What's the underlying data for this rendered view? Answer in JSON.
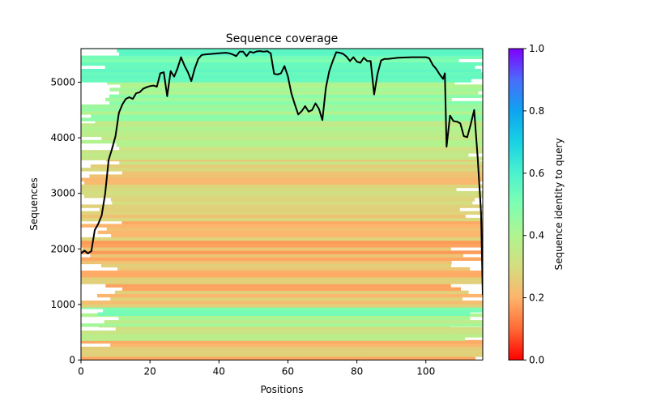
{
  "chart_data": {
    "type": "heatmap",
    "title": "Sequence coverage",
    "xlabel": "Positions",
    "ylabel": "Sequences",
    "xlim": [
      0,
      116.5
    ],
    "ylim": [
      0,
      5605
    ],
    "xticks": [
      0,
      20,
      40,
      60,
      80,
      100
    ],
    "yticks": [
      0,
      1000,
      2000,
      3000,
      4000,
      5000
    ],
    "grid": false,
    "colorbar": {
      "label": "Sequence identity to query",
      "range": [
        0.0,
        1.0
      ],
      "ticks": [
        "0.0",
        "0.2",
        "0.4",
        "0.6",
        "0.8",
        "1.0"
      ],
      "colormap": "rainbow_r",
      "colors": [
        "#ff0000",
        "#ff6a35",
        "#fdb46c",
        "#d4dd80",
        "#b0f490",
        "#7ffeb2",
        "#4cf2ce",
        "#19d2e3",
        "#0ea4f0",
        "#4a6cfb",
        "#8000ff"
      ]
    },
    "identity_bands": [
      {
        "from": 0,
        "to": 350,
        "identity": 0.24
      },
      {
        "from": 350,
        "to": 600,
        "identity": 0.32
      },
      {
        "from": 600,
        "to": 800,
        "identity": 0.42
      },
      {
        "from": 800,
        "to": 950,
        "identity": 0.52
      },
      {
        "from": 950,
        "to": 2500,
        "identity": 0.22
      },
      {
        "from": 2500,
        "to": 3600,
        "identity": 0.27
      },
      {
        "from": 3600,
        "to": 4300,
        "identity": 0.36
      },
      {
        "from": 4300,
        "to": 5000,
        "identity": 0.44
      },
      {
        "from": 5000,
        "to": 5605,
        "identity": 0.53
      }
    ],
    "series": [
      {
        "name": "coverage",
        "color": "#000000",
        "x": [
          0,
          1,
          2,
          3,
          4,
          5,
          6,
          7,
          8,
          9,
          10,
          11,
          12,
          13,
          14,
          15,
          16,
          17,
          18,
          19,
          20,
          21,
          22,
          23,
          24,
          25,
          26,
          27,
          28,
          29,
          30,
          31,
          32,
          33,
          34,
          35,
          36,
          38,
          40,
          42,
          43,
          44,
          45,
          46,
          47,
          48,
          49,
          50,
          51,
          52,
          53,
          54,
          55,
          56,
          57,
          58,
          59,
          60,
          61,
          62,
          63,
          64,
          65,
          66,
          67,
          68,
          69,
          70,
          71,
          72,
          73,
          74,
          75,
          76,
          77,
          78,
          79,
          80,
          81,
          82,
          83,
          84,
          85,
          86,
          87,
          88,
          89,
          92,
          96,
          100,
          101,
          102,
          103,
          104,
          105,
          105.5,
          106,
          107,
          108,
          109,
          110,
          111,
          112,
          113,
          114,
          115,
          116,
          116.5
        ],
        "y": [
          1920,
          1970,
          1920,
          1960,
          2340,
          2450,
          2600,
          2990,
          3600,
          3800,
          4030,
          4450,
          4600,
          4700,
          4730,
          4700,
          4800,
          4820,
          4880,
          4910,
          4930,
          4940,
          4920,
          5160,
          5180,
          4750,
          5200,
          5100,
          5250,
          5450,
          5300,
          5180,
          5020,
          5250,
          5420,
          5490,
          5500,
          5510,
          5520,
          5530,
          5520,
          5500,
          5470,
          5550,
          5550,
          5470,
          5550,
          5530,
          5555,
          5560,
          5550,
          5560,
          5520,
          5150,
          5140,
          5160,
          5290,
          5100,
          4800,
          4600,
          4420,
          4480,
          4570,
          4470,
          4500,
          4620,
          4520,
          4320,
          4900,
          5200,
          5380,
          5540,
          5530,
          5510,
          5460,
          5380,
          5450,
          5370,
          5350,
          5440,
          5380,
          5380,
          4780,
          5150,
          5390,
          5420,
          5420,
          5440,
          5450,
          5450,
          5430,
          5310,
          5240,
          5140,
          5060,
          5160,
          3840,
          4400,
          4300,
          4290,
          4260,
          4030,
          4010,
          4240,
          4500,
          3670,
          2650,
          1170
        ]
      }
    ]
  }
}
